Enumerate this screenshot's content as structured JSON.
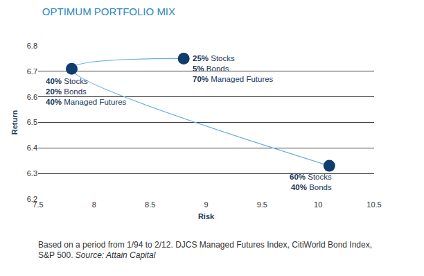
{
  "chart_data": {
    "type": "scatter",
    "title": "OPTIMUM PORTFOLIO MIX",
    "x_label": "Risk",
    "y_label": "Return",
    "x": [
      10.1,
      7.8,
      8.8
    ],
    "values": [
      6.33,
      6.71,
      6.75
    ],
    "point_labels": [
      [
        "60% Stocks",
        "40% Bonds"
      ],
      [
        "40% Stocks",
        "20% Bonds",
        "40% Managed Futures"
      ],
      [
        "25% Stocks",
        "5% Bonds",
        "70% Managed Futures"
      ]
    ],
    "color": "#0e3d6e",
    "marker": "circle",
    "line_style": "solid",
    "xlim": [
      7.5,
      10.5
    ],
    "xticks": [
      7.5,
      8,
      8.5,
      9,
      9.5,
      10,
      10.5
    ],
    "ylim": [
      6.2,
      6.8
    ],
    "yticks": [
      6.2,
      6.3,
      6.4,
      6.5,
      6.6,
      6.7,
      6.8
    ],
    "grid": true,
    "note": "Based on a period from 1/94 to 2/12. DJCS Managed Futures Index, CitiWorld Bond Index, S&P 500.",
    "source": "Source: Attain Capital"
  }
}
